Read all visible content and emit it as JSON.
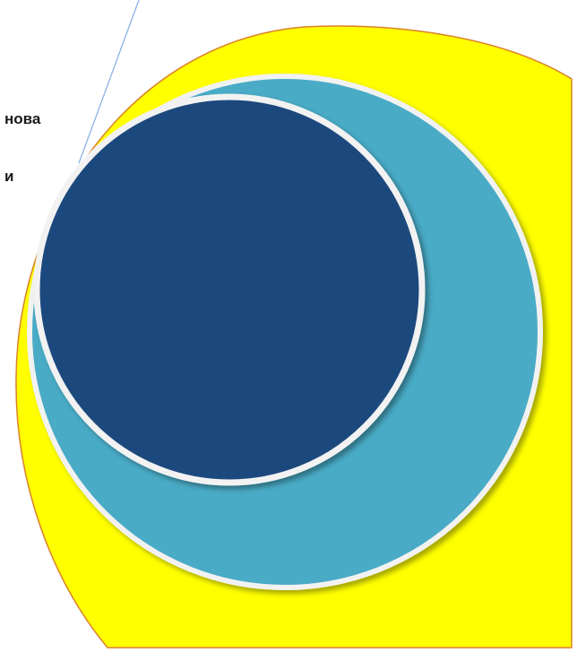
{
  "labels": {
    "line1": "нова",
    "line2": "и"
  },
  "colors": {
    "background_shape": "#ffff00",
    "background_border": "#d9822b",
    "outer_ring": "#4aabc6",
    "inner_circle": "#1f497d",
    "separator_ring": "#f2f2f2",
    "callout_line": "#8db3e2"
  }
}
